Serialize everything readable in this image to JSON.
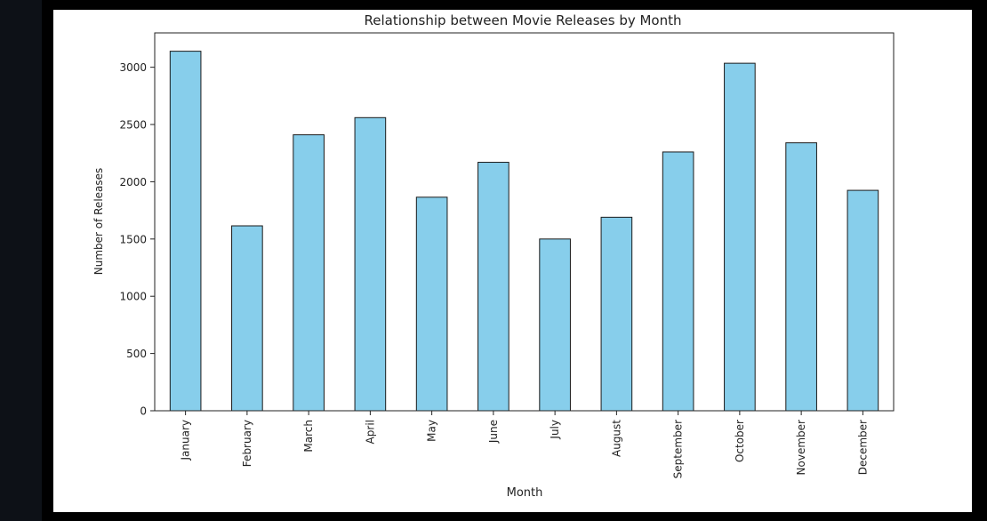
{
  "chart_data": {
    "type": "bar",
    "title": "Relationship between Movie Releases by Month",
    "xlabel": "Month",
    "ylabel": "Number of Releases",
    "categories": [
      "January",
      "February",
      "March",
      "April",
      "May",
      "June",
      "July",
      "August",
      "September",
      "October",
      "November",
      "December"
    ],
    "values": [
      3140,
      1615,
      2410,
      2560,
      1865,
      2170,
      1500,
      1690,
      2260,
      3035,
      2340,
      1925
    ],
    "ylim": [
      0,
      3300
    ],
    "yticks": [
      0,
      500,
      1000,
      1500,
      2000,
      2500,
      3000
    ],
    "grid": false,
    "legend": "none",
    "bar_color": "#87ceeb",
    "bar_edge_color": "#1a1a1a"
  },
  "colors": {
    "page_background": "#000000",
    "side_strip": "#0d1117",
    "plot_background": "#ffffff"
  }
}
